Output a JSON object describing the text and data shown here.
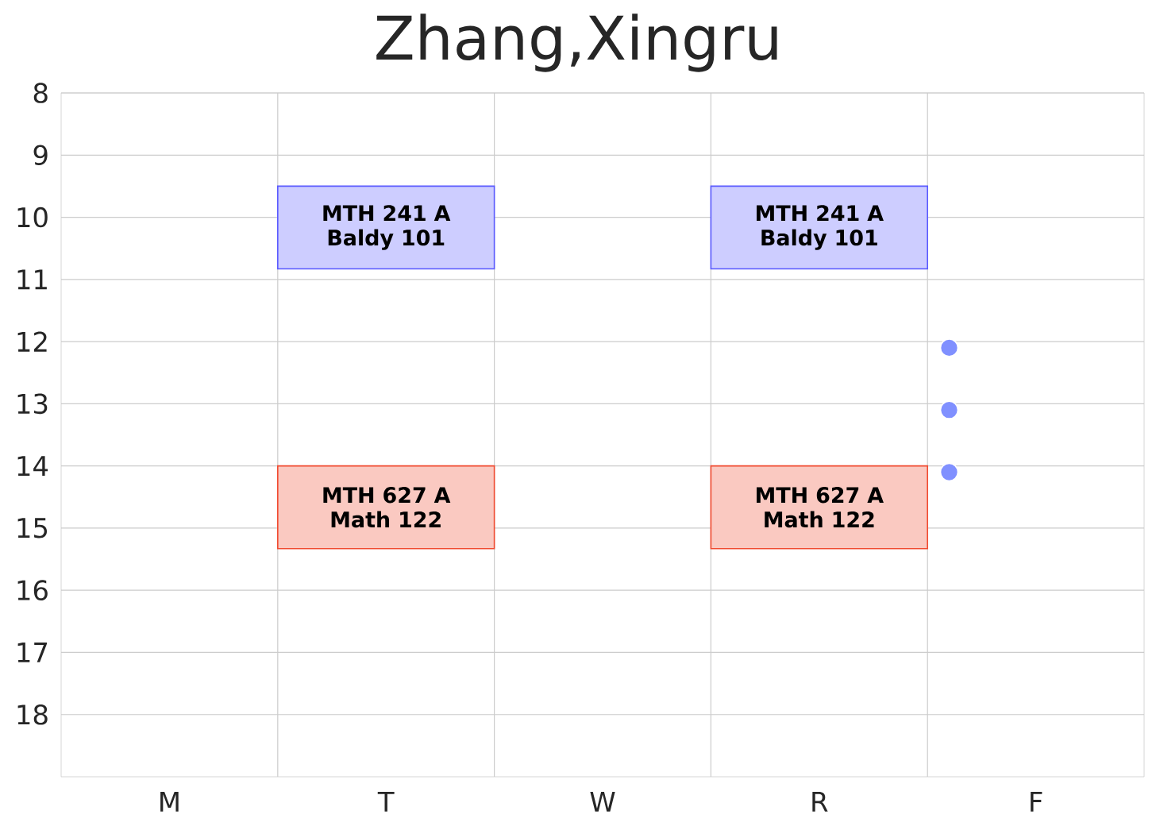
{
  "chart_data": {
    "type": "bar",
    "title": "Zhang,Xingru",
    "categories": [
      "M",
      "T",
      "W",
      "R",
      "F"
    ],
    "ylim": [
      19,
      8
    ],
    "yticks": [
      8,
      9,
      10,
      11,
      12,
      13,
      14,
      15,
      16,
      17,
      18
    ],
    "grid": true,
    "series": [
      {
        "color": "#5a5aff",
        "base": [
          null,
          9.5,
          null,
          9.5,
          null
        ],
        "values": [
          null,
          1.33,
          null,
          1.33,
          null
        ],
        "value_labels": [
          null,
          "MTH 241 A Baldy 101",
          null,
          "MTH 241 A Baldy 101",
          null
        ]
      },
      {
        "color": "#f04a30",
        "base": [
          null,
          14,
          null,
          14,
          null
        ],
        "values": [
          null,
          1.33,
          null,
          1.33,
          null
        ],
        "value_labels": [
          null,
          "MTH 627 A Math 122",
          null,
          "MTH 627 A Math 122",
          null
        ]
      },
      {
        "type": "scatter",
        "color": "#8090ff",
        "marker": "circle",
        "values": [
          null,
          null,
          null,
          null,
          12.1
        ]
      },
      {
        "type": "scatter",
        "color": "#8090ff",
        "marker": "circle",
        "values": [
          null,
          null,
          null,
          null,
          13.1
        ]
      },
      {
        "type": "scatter",
        "color": "#8090ff",
        "marker": "circle",
        "values": [
          null,
          null,
          null,
          null,
          14.1
        ]
      }
    ]
  }
}
